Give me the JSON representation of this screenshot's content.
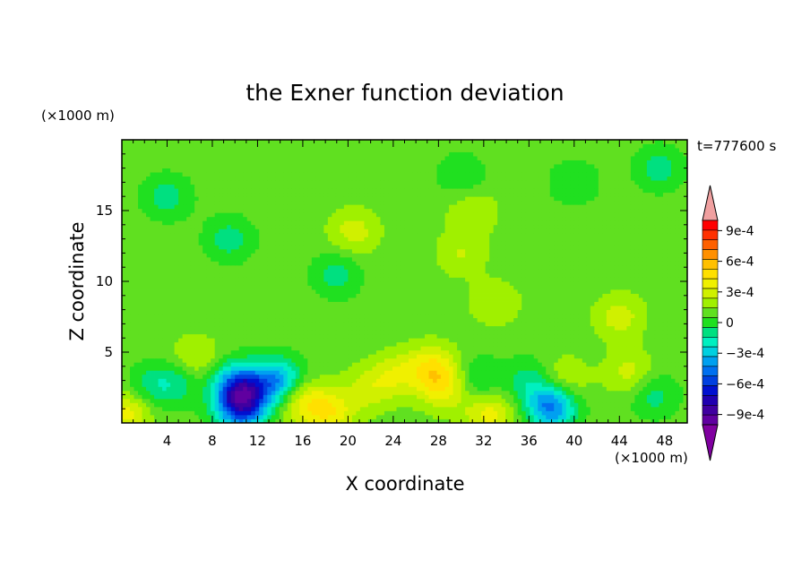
{
  "chart_data": {
    "type": "heatmap",
    "title": "the Exner function deviation",
    "xlabel": "X coordinate",
    "ylabel": "Z coordinate",
    "x_unit": "(×1000 m)",
    "y_unit": "(×1000 m)",
    "time_label": "t=777600 s",
    "xlim": [
      0,
      50
    ],
    "ylim": [
      0,
      20
    ],
    "x_ticks": [
      4,
      8,
      12,
      16,
      20,
      24,
      28,
      32,
      36,
      40,
      44,
      48
    ],
    "y_ticks": [
      5,
      10,
      15
    ],
    "colorbar": {
      "levels": [
        -0.0011,
        -0.001,
        -0.0009,
        -0.0008,
        -0.0007,
        -0.0006,
        -0.0005,
        -0.0004,
        -0.0003,
        -0.0002,
        -0.0001,
        0,
        0.0001,
        0.0002,
        0.0003,
        0.0004,
        0.0005,
        0.0006,
        0.0007,
        0.0008,
        0.0009,
        0.001,
        0.0011
      ],
      "tick_values": [
        0.0009,
        0.0006,
        0.0003,
        0,
        -0.0003,
        -0.0006,
        -0.0009
      ],
      "tick_labels": [
        "9e-4",
        "6e-4",
        "3e-4",
        "0",
        "−3e-4",
        "−6e-4",
        "−9e-4"
      ],
      "colors_high_to_low": [
        "#f0a0a0",
        "#ff0000",
        "#ff3000",
        "#ff6000",
        "#ff9000",
        "#ffc000",
        "#ffe000",
        "#f0f000",
        "#d0f000",
        "#a0f000",
        "#60e020",
        "#20e020",
        "#00e080",
        "#00f0c0",
        "#00d0e0",
        "#00a0f0",
        "#0070f0",
        "#0040e0",
        "#0010d0",
        "#2000b0",
        "#4000a0",
        "#6000a0",
        "#8000a0"
      ]
    },
    "field": {
      "background_value": 5e-05,
      "features": [
        {
          "x": 10.5,
          "z": 1.0,
          "value": -0.0006
        },
        {
          "x": 10.8,
          "z": 2.2,
          "value": -0.0005
        },
        {
          "x": 10.0,
          "z": 3.0,
          "value": -0.0003
        },
        {
          "x": 13.8,
          "z": 3.0,
          "value": -0.0005
        },
        {
          "x": 38.0,
          "z": 1.2,
          "value": -0.0006
        },
        {
          "x": 2.5,
          "z": 2.5,
          "value": -0.0002
        },
        {
          "x": 5.0,
          "z": 3.0,
          "value": -0.0002
        },
        {
          "x": 16.0,
          "z": 1.5,
          "value": 0.0003
        },
        {
          "x": 18.5,
          "z": 0.8,
          "value": 0.0003
        },
        {
          "x": 27.5,
          "z": 4.0,
          "value": 0.0003
        },
        {
          "x": 28.5,
          "z": 2.5,
          "value": 0.0003
        },
        {
          "x": 22.0,
          "z": 2.5,
          "value": 0.0002
        },
        {
          "x": 24.5,
          "z": 3.5,
          "value": 0.0002
        },
        {
          "x": 31.5,
          "z": 3.0,
          "value": -0.0002
        },
        {
          "x": 32.5,
          "z": 0.7,
          "value": 0.0003
        },
        {
          "x": 36.0,
          "z": 3.0,
          "value": -0.0002
        },
        {
          "x": 39.0,
          "z": 3.0,
          "value": 0.0002
        },
        {
          "x": 45.0,
          "z": 3.5,
          "value": 0.0002
        },
        {
          "x": 47.0,
          "z": 2.0,
          "value": -0.0002
        },
        {
          "x": 44.0,
          "z": 7.5,
          "value": 0.0002
        },
        {
          "x": 19.0,
          "z": 10.5,
          "value": -0.0002
        },
        {
          "x": 33.0,
          "z": 8.5,
          "value": 0.00015
        },
        {
          "x": 20.5,
          "z": 13.5,
          "value": 0.0002
        },
        {
          "x": 30.0,
          "z": 12.0,
          "value": 0.00015
        },
        {
          "x": 4.0,
          "z": 16.0,
          "value": -0.0002
        },
        {
          "x": 9.5,
          "z": 13.0,
          "value": -0.0002
        },
        {
          "x": 47.5,
          "z": 18.0,
          "value": -0.0002
        },
        {
          "x": 30.0,
          "z": 17.5,
          "value": -0.00015
        },
        {
          "x": 40.0,
          "z": 17.0,
          "value": -0.00015
        },
        {
          "x": 31.0,
          "z": 15.0,
          "value": 0.00015
        },
        {
          "x": 0.5,
          "z": 0.8,
          "value": 0.0003
        },
        {
          "x": 6.5,
          "z": 4.5,
          "value": 0.0002
        }
      ]
    }
  }
}
